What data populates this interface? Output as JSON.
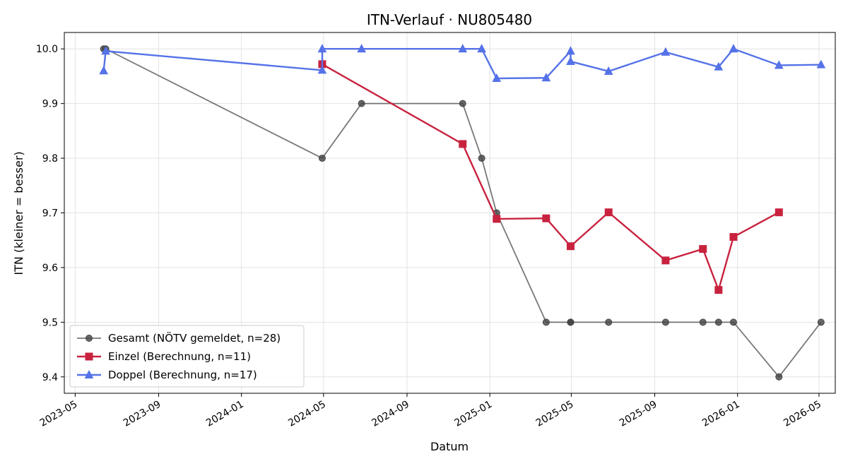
{
  "chart_data": {
    "type": "line",
    "title": "ITN-Verlauf · NU805480",
    "xlabel": "Datum",
    "ylabel": "ITN  (kleiner = besser)",
    "xlim": [
      "2023-04-15",
      "2026-05-25"
    ],
    "ylim": [
      9.37,
      10.03
    ],
    "x_ticks": [
      "2023-05",
      "2023-09",
      "2024-01",
      "2024-05",
      "2024-09",
      "2025-01",
      "2025-05",
      "2025-09",
      "2026-01",
      "2026-05"
    ],
    "y_ticks": [
      "9.4",
      "9.5",
      "9.6",
      "9.7",
      "9.8",
      "9.9",
      "10.0"
    ],
    "grid": true,
    "legend_position": "lower-left",
    "series": [
      {
        "name": "Gesamt (NÖTV gemeldet, n=28)",
        "color": "#444444",
        "marker": "circle",
        "points": [
          {
            "x": "2023-06-12",
            "y": 10.0
          },
          {
            "x": "2023-06-15",
            "y": 10.0
          },
          {
            "x": "2024-04-29",
            "y": 9.8
          },
          {
            "x": "2024-06-26",
            "y": 9.9
          },
          {
            "x": "2024-11-22",
            "y": 9.9
          },
          {
            "x": "2024-12-20",
            "y": 9.8
          },
          {
            "x": "2025-01-11",
            "y": 9.7
          },
          {
            "x": "2025-03-25",
            "y": 9.5
          },
          {
            "x": "2025-04-30",
            "y": 9.5
          },
          {
            "x": "2025-04-30",
            "y": 9.5
          },
          {
            "x": "2025-06-25",
            "y": 9.5
          },
          {
            "x": "2025-09-17",
            "y": 9.5
          },
          {
            "x": "2025-11-11",
            "y": 9.5
          },
          {
            "x": "2025-12-04",
            "y": 9.5
          },
          {
            "x": "2025-12-26",
            "y": 9.5
          },
          {
            "x": "2026-03-03",
            "y": 9.4
          },
          {
            "x": "2026-05-04",
            "y": 9.5
          }
        ]
      },
      {
        "name": "Einzel (Berechnung, n=11)",
        "color": "#c8223f",
        "marker": "square",
        "points": [
          {
            "x": "2024-04-29",
            "y": 9.972
          },
          {
            "x": "2024-11-22",
            "y": 9.826
          },
          {
            "x": "2025-01-11",
            "y": 9.689
          },
          {
            "x": "2025-03-25",
            "y": 9.69
          },
          {
            "x": "2025-04-30",
            "y": 9.639
          },
          {
            "x": "2025-06-25",
            "y": 9.701
          },
          {
            "x": "2025-09-17",
            "y": 9.613
          },
          {
            "x": "2025-11-11",
            "y": 9.634
          },
          {
            "x": "2025-12-04",
            "y": 9.559
          },
          {
            "x": "2025-12-26",
            "y": 9.656
          },
          {
            "x": "2026-03-03",
            "y": 9.701
          }
        ]
      },
      {
        "name": "Doppel (Berechnung, n=17)",
        "color": "#5572e8",
        "marker": "triangle",
        "points": [
          {
            "x": "2023-06-12",
            "y": 9.96
          },
          {
            "x": "2023-06-15",
            "y": 9.996
          },
          {
            "x": "2024-04-29",
            "y": 9.961
          },
          {
            "x": "2024-04-29",
            "y": 10.0
          },
          {
            "x": "2024-06-26",
            "y": 10.0
          },
          {
            "x": "2024-11-22",
            "y": 10.0
          },
          {
            "x": "2024-12-20",
            "y": 10.0
          },
          {
            "x": "2025-01-11",
            "y": 9.946
          },
          {
            "x": "2025-03-25",
            "y": 9.947
          },
          {
            "x": "2025-04-30",
            "y": 9.996
          },
          {
            "x": "2025-04-30",
            "y": 9.977
          },
          {
            "x": "2025-06-25",
            "y": 9.959
          },
          {
            "x": "2025-09-17",
            "y": 9.994
          },
          {
            "x": "2025-12-04",
            "y": 9.967
          },
          {
            "x": "2025-12-26",
            "y": 10.0
          },
          {
            "x": "2026-03-03",
            "y": 9.97
          },
          {
            "x": "2026-05-04",
            "y": 9.971
          }
        ]
      }
    ]
  }
}
